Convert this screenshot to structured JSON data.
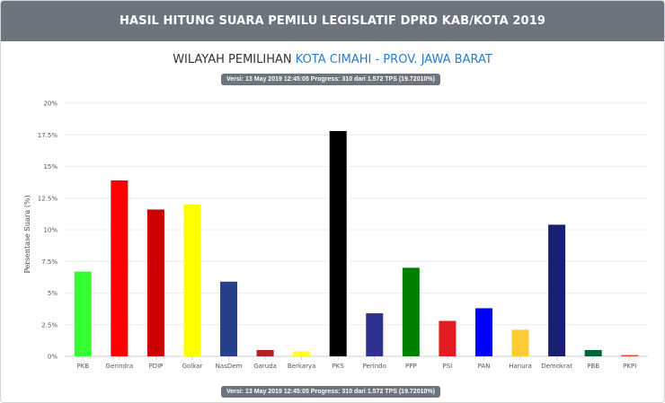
{
  "header": {
    "title": "HASIL HITUNG SUARA PEMILU LEGISLATIF DPRD KAB/KOTA 2019"
  },
  "subtitle": {
    "prefix": "WILAYAH PEMILIHAN",
    "region": "KOTA CIMAHI - PROV. JAWA BARAT"
  },
  "version_badge": "Versi: 13 May 2019 12:45:05 Progress: 310 dari 1.572 TPS (19.72010%)",
  "chart_data": {
    "type": "bar",
    "ylabel": "Persentase Suara (%)",
    "ylim": [
      0,
      20
    ],
    "yticks": [
      {
        "value": 0,
        "label": "0%"
      },
      {
        "value": 2.5,
        "label": "2.5%"
      },
      {
        "value": 5,
        "label": "5%"
      },
      {
        "value": 7.5,
        "label": "7.5%"
      },
      {
        "value": 10,
        "label": "10%"
      },
      {
        "value": 12.5,
        "label": "12.5%"
      },
      {
        "value": 15,
        "label": "15%"
      },
      {
        "value": 17.5,
        "label": "17.5%"
      },
      {
        "value": 20,
        "label": "20%"
      }
    ],
    "grid": true,
    "categories": [
      "PKB",
      "Gerindra",
      "PDIP",
      "Golkar",
      "NasDem",
      "Garuda",
      "Berkarya",
      "PKS",
      "Perindo",
      "PPP",
      "PSI",
      "PAN",
      "Hanura",
      "Demokrat",
      "PBB",
      "PKPI"
    ],
    "values": [
      6.7,
      13.9,
      11.6,
      12.0,
      5.9,
      0.5,
      0.4,
      17.8,
      3.4,
      7.0,
      2.8,
      3.8,
      2.1,
      10.4,
      0.5,
      0.1
    ],
    "colors": [
      "#33ff33",
      "#ff0000",
      "#cc0000",
      "#ffff00",
      "#27408b",
      "#b22222",
      "#ffff33",
      "#000000",
      "#2e3192",
      "#008000",
      "#e31b23",
      "#0000ff",
      "#ffcc33",
      "#1a1f71",
      "#006633",
      "#e34234"
    ]
  }
}
